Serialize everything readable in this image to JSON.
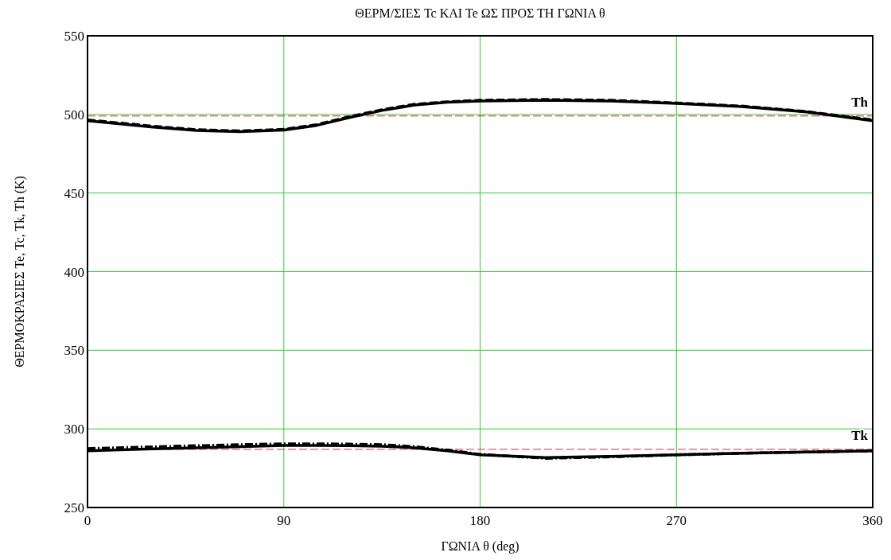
{
  "chart_data": {
    "type": "line",
    "title": "ΘΕΡΜ/ΣΙΕΣ Tc ΚΑΙ Te ΩΣ ΠΡΟΣ ΤΗ ΓΩΝΙΑ θ",
    "xlabel": "ΓΩΝΙΑ θ (deg)",
    "ylabel": "ΘΕΡΜΟΚΡΑΣΙΕΣ Te, Tc, Tk, Th (K)",
    "x": [
      0,
      30,
      50,
      70,
      90,
      105,
      120,
      135,
      150,
      165,
      180,
      210,
      240,
      270,
      300,
      330,
      360
    ],
    "series": [
      {
        "color": "#000000",
        "line_style": "solid",
        "values": [
          496,
          492,
          489.8,
          489,
          490,
          493,
          498,
          502.5,
          506,
          507.8,
          508.5,
          509,
          508.5,
          507,
          505,
          501.5,
          496
        ]
      },
      {
        "color": "#000000",
        "line_style": "dashed",
        "values": [
          496.5,
          492.5,
          490.3,
          489.5,
          490.5,
          493.5,
          498.5,
          503,
          506.5,
          508,
          509,
          509.5,
          509,
          507.3,
          505.3,
          501.8,
          496.5
        ]
      },
      {
        "color": "#000000",
        "line_style": "solid",
        "values": [
          286,
          287.3,
          288,
          288.7,
          289.5,
          289.5,
          289.3,
          289,
          288,
          286,
          283.5,
          281.7,
          282.5,
          283.5,
          284.5,
          285.3,
          286
        ]
      },
      {
        "color": "#000000",
        "line_style": "dashdot",
        "values": [
          287.5,
          288.6,
          289.3,
          290,
          290.5,
          290.5,
          290.3,
          290,
          288.7,
          286.5,
          283.8,
          281.3,
          282.2,
          283.5,
          284.5,
          285.3,
          286
        ]
      }
    ],
    "xlim": [
      0,
      360
    ],
    "xticks": [
      0,
      90,
      180,
      270,
      360
    ],
    "ylim": [
      250,
      550
    ],
    "yticks": [
      250,
      300,
      350,
      400,
      450,
      500,
      550
    ],
    "grid": true,
    "ref_lines": [
      {
        "axis": "y",
        "value": 499,
        "label": "Th",
        "color": "#cc3333",
        "line_style": "dashed"
      },
      {
        "axis": "y",
        "value": 287,
        "label": "Tk",
        "color": "#cc3333",
        "line_style": "dashed"
      }
    ]
  }
}
